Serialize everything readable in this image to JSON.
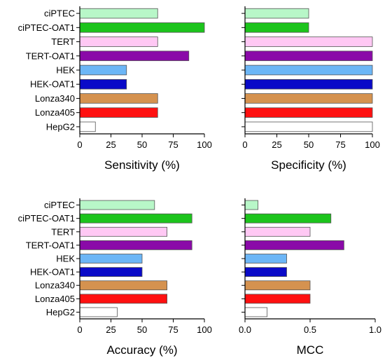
{
  "chart_data": [
    {
      "type": "bar",
      "orientation": "horizontal",
      "categories": [
        "ciPTEC",
        "ciPTEC-OAT1",
        "TERT",
        "TERT-OAT1",
        "HEK",
        "HEK-OAT1",
        "Lonza340",
        "Lonza405",
        "HepG2"
      ],
      "values": [
        62.5,
        100,
        62.5,
        87.5,
        37.5,
        37.5,
        62.5,
        62.5,
        12.5
      ],
      "xlabel": "Sensitivity (%)",
      "xlim": [
        0,
        100
      ],
      "xticks": [
        "0",
        "25",
        "50",
        "75",
        "100"
      ],
      "grid": false
    },
    {
      "type": "bar",
      "orientation": "horizontal",
      "categories": [
        "ciPTEC",
        "ciPTEC-OAT1",
        "TERT",
        "TERT-OAT1",
        "HEK",
        "HEK-OAT1",
        "Lonza340",
        "Lonza405",
        "HepG2"
      ],
      "values": [
        50,
        50,
        100,
        100,
        100,
        100,
        100,
        100,
        100
      ],
      "xlabel": "Specificity (%)",
      "xlim": [
        0,
        100
      ],
      "xticks": [
        "0",
        "25",
        "50",
        "75",
        "100"
      ],
      "grid": false
    },
    {
      "type": "bar",
      "orientation": "horizontal",
      "categories": [
        "ciPTEC",
        "ciPTEC-OAT1",
        "TERT",
        "TERT-OAT1",
        "HEK",
        "HEK-OAT1",
        "Lonza340",
        "Lonza405",
        "HepG2"
      ],
      "values": [
        60,
        90,
        70,
        90,
        50,
        50,
        70,
        70,
        30
      ],
      "xlabel": "Accuracy (%)",
      "xlim": [
        0,
        100
      ],
      "xticks": [
        "0",
        "25",
        "50",
        "75",
        "100"
      ],
      "grid": false
    },
    {
      "type": "bar",
      "orientation": "horizontal",
      "categories": [
        "ciPTEC",
        "ciPTEC-OAT1",
        "TERT",
        "TERT-OAT1",
        "HEK",
        "HEK-OAT1",
        "Lonza340",
        "Lonza405",
        "HepG2"
      ],
      "values": [
        0.1,
        0.66,
        0.5,
        0.76,
        0.32,
        0.32,
        0.5,
        0.5,
        0.17
      ],
      "xlabel": "MCC",
      "xlim": [
        0,
        1
      ],
      "xticks": [
        "0.0",
        "0.5",
        "1.0"
      ],
      "grid": false
    }
  ],
  "colors": [
    "#b8f7c8",
    "#1cc41c",
    "#ffc8f4",
    "#8a0aa8",
    "#6cb6f6",
    "#0a0ac8",
    "#d5924f",
    "#ff1010",
    "#ffffff"
  ],
  "bar_edge_color": "#555555"
}
